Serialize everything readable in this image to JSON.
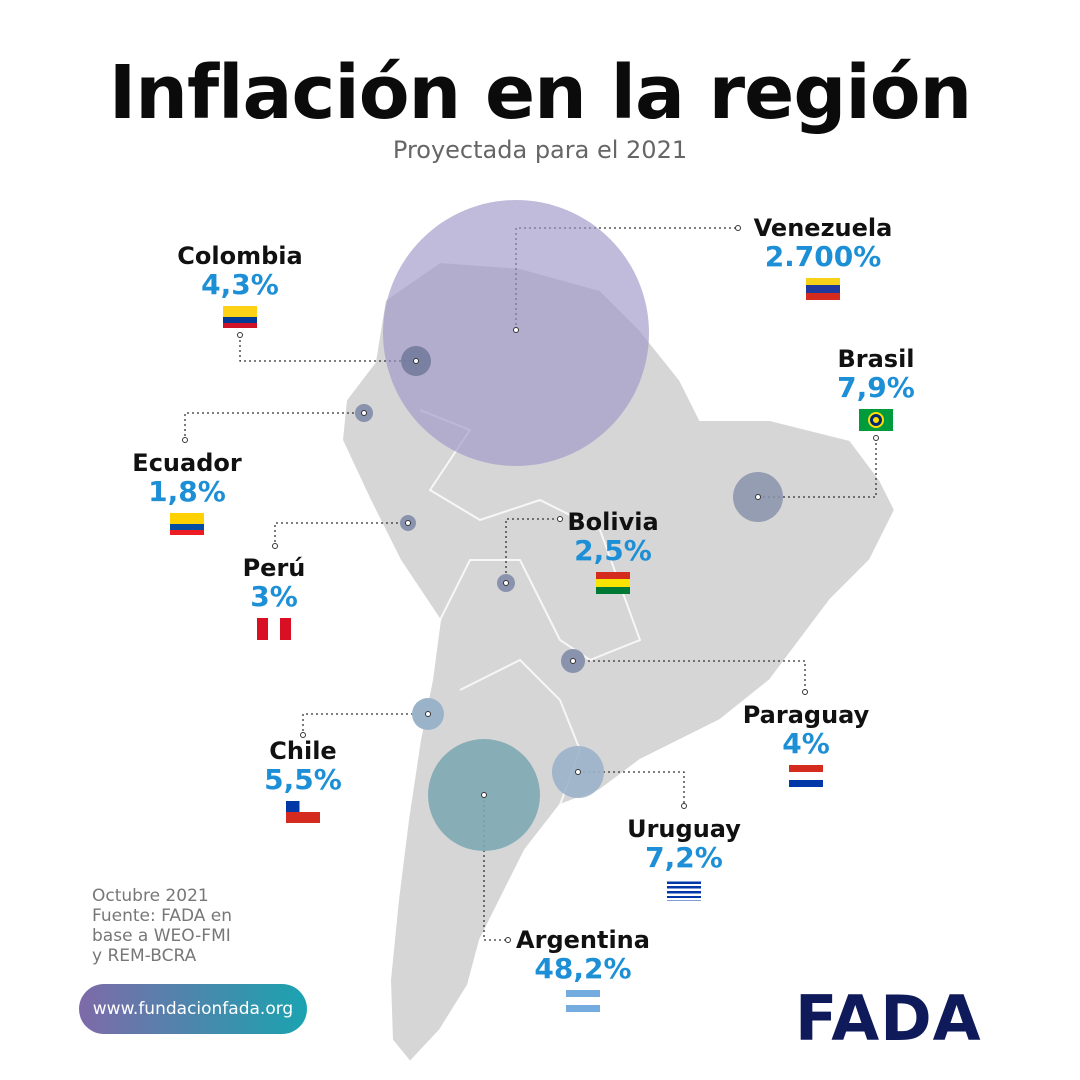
{
  "title": "Inflación en la región",
  "subtitle": "Proyectada para el 2021",
  "countries": [
    {
      "name": "Venezuela",
      "value": "2.700%"
    },
    {
      "name": "Colombia",
      "value": "4,3%"
    },
    {
      "name": "Brasil",
      "value": "7,9%"
    },
    {
      "name": "Ecuador",
      "value": "1,8%"
    },
    {
      "name": "Bolivia",
      "value": "2,5%"
    },
    {
      "name": "Perú",
      "value": "3%"
    },
    {
      "name": "Paraguay",
      "value": "4%"
    },
    {
      "name": "Chile",
      "value": "5,5%"
    },
    {
      "name": "Uruguay",
      "value": "7,2%"
    },
    {
      "name": "Argentina",
      "value": "48,2%"
    }
  ],
  "footer": {
    "line1": "Octubre 2021",
    "line2": "Fuente: FADA en",
    "line3": "base a WEO-FMI",
    "line4": "y REM-BCRA"
  },
  "website": "www.fundacionfada.org",
  "logo": "FADA",
  "colors": {
    "value": "#1d8fd6",
    "map": "#d6d6d6",
    "bubble": "#8a93ad",
    "venezuela": "#b3abd2",
    "argentina": "#7ea8b2"
  }
}
